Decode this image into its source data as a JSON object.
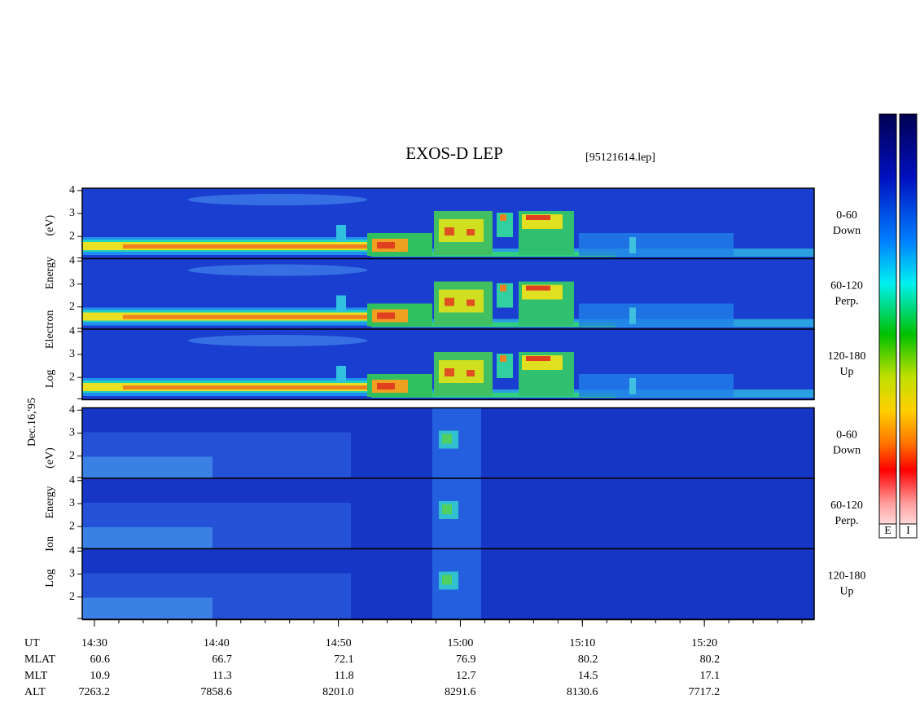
{
  "chart_data": {
    "type": "spectrogram",
    "title": "EXOS-D LEP",
    "file": "[95121614.lep]",
    "date": "Dec.16,'95",
    "electron_axis_label": "Log Electron Energy (eV)",
    "ion_axis_label": "Log Ion Energy (eV)",
    "ylim": [
      1.03,
      4.1
    ],
    "yticks": [
      2,
      3,
      4
    ],
    "xlim": [
      "14:29",
      "15:29"
    ],
    "xticks": [
      "14:30",
      "14:40",
      "14:50",
      "15:00",
      "15:10",
      "15:20"
    ],
    "panels": [
      {
        "species": "electron",
        "label": [
          "0-60",
          "Down"
        ]
      },
      {
        "species": "electron",
        "label": [
          "60-120",
          "Perp."
        ]
      },
      {
        "species": "electron",
        "label": [
          "120-180",
          "Up"
        ]
      },
      {
        "species": "ion",
        "label": [
          "0-60",
          "Down"
        ]
      },
      {
        "species": "ion",
        "label": [
          "60-120",
          "Perp."
        ]
      },
      {
        "species": "ion",
        "label": [
          "120-180",
          "Up"
        ]
      }
    ],
    "ephemeris": [
      {
        "name": "MLAT",
        "values": [
          "60.6",
          "66.7",
          "72.1",
          "76.9",
          "80.2",
          "80.2"
        ]
      },
      {
        "name": "MLT",
        "values": [
          "10.9",
          "11.3",
          "11.8",
          "12.7",
          "14.5",
          "17.1"
        ]
      },
      {
        "name": "ALT",
        "values": [
          "7263.2",
          "7858.6",
          "8201.0",
          "8291.6",
          "8130.6",
          "7717.2"
        ]
      }
    ],
    "time_row_name": "UT",
    "colorbars": [
      "E",
      "I"
    ]
  }
}
